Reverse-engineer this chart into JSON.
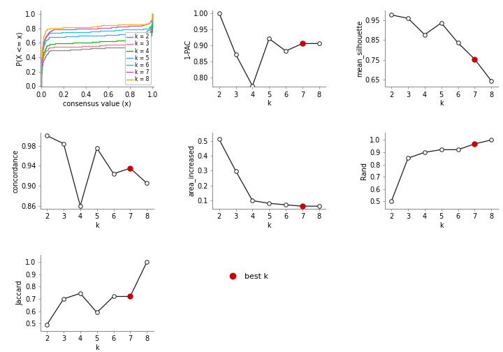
{
  "ecdf_colors": [
    "#808080",
    "#FF6688",
    "#00BB00",
    "#4499FF",
    "#00CCCC",
    "#CC44CC",
    "#FFAA00"
  ],
  "ecdf_labels": [
    "k = 2",
    "k = 3",
    "k = 4",
    "k = 5",
    "k = 6",
    "k = 7",
    "k = 8"
  ],
  "ecdf_y_flat": [
    0.525,
    0.575,
    0.625,
    0.72,
    0.78,
    0.83,
    0.855
  ],
  "pac": {
    "k": [
      2,
      3,
      4,
      5,
      6,
      7,
      8
    ],
    "v": [
      1.0,
      0.872,
      0.775,
      0.921,
      0.883,
      0.906,
      0.906
    ],
    "best_k": 7,
    "yticks": [
      0.8,
      0.85,
      0.9,
      0.95,
      1.0
    ],
    "ylim": [
      0.772,
      1.008
    ]
  },
  "silhouette": {
    "k": [
      2,
      3,
      4,
      5,
      6,
      7,
      8
    ],
    "v": [
      0.976,
      0.959,
      0.877,
      0.936,
      0.836,
      0.754,
      0.645
    ],
    "best_k": 7,
    "yticks": [
      0.65,
      0.75,
      0.85,
      0.95
    ],
    "ylim": [
      0.615,
      0.998
    ]
  },
  "concordance": {
    "k": [
      2,
      3,
      4,
      5,
      6,
      7,
      8
    ],
    "v": [
      1.0,
      0.984,
      0.86,
      0.975,
      0.924,
      0.935,
      0.905
    ],
    "best_k": 7,
    "yticks": [
      0.86,
      0.9,
      0.94,
      0.98
    ],
    "ylim": [
      0.854,
      1.006
    ]
  },
  "area_increased": {
    "k": [
      2,
      3,
      4,
      5,
      6,
      7,
      8
    ],
    "v": [
      0.51,
      0.298,
      0.1,
      0.082,
      0.072,
      0.063,
      0.063
    ],
    "best_k": 7,
    "yticks": [
      0.1,
      0.2,
      0.3,
      0.4,
      0.5
    ],
    "ylim": [
      0.045,
      0.555
    ]
  },
  "rand": {
    "k": [
      2,
      3,
      4,
      5,
      6,
      7,
      8
    ],
    "v": [
      0.5,
      0.852,
      0.9,
      0.921,
      0.921,
      0.968,
      1.0
    ],
    "best_k": 7,
    "yticks": [
      0.5,
      0.6,
      0.7,
      0.8,
      0.9,
      1.0
    ],
    "ylim": [
      0.44,
      1.06
    ]
  },
  "jaccard": {
    "k": [
      2,
      3,
      4,
      5,
      6,
      7,
      8
    ],
    "v": [
      0.49,
      0.7,
      0.745,
      0.59,
      0.72,
      0.72,
      1.0
    ],
    "best_k": 7,
    "yticks": [
      0.5,
      0.6,
      0.7,
      0.8,
      0.9,
      1.0
    ],
    "ylim": [
      0.44,
      1.06
    ]
  },
  "line_color": "#1a1a1a",
  "best_color": "#CC0000",
  "font_size": 7,
  "marker_size": 4
}
